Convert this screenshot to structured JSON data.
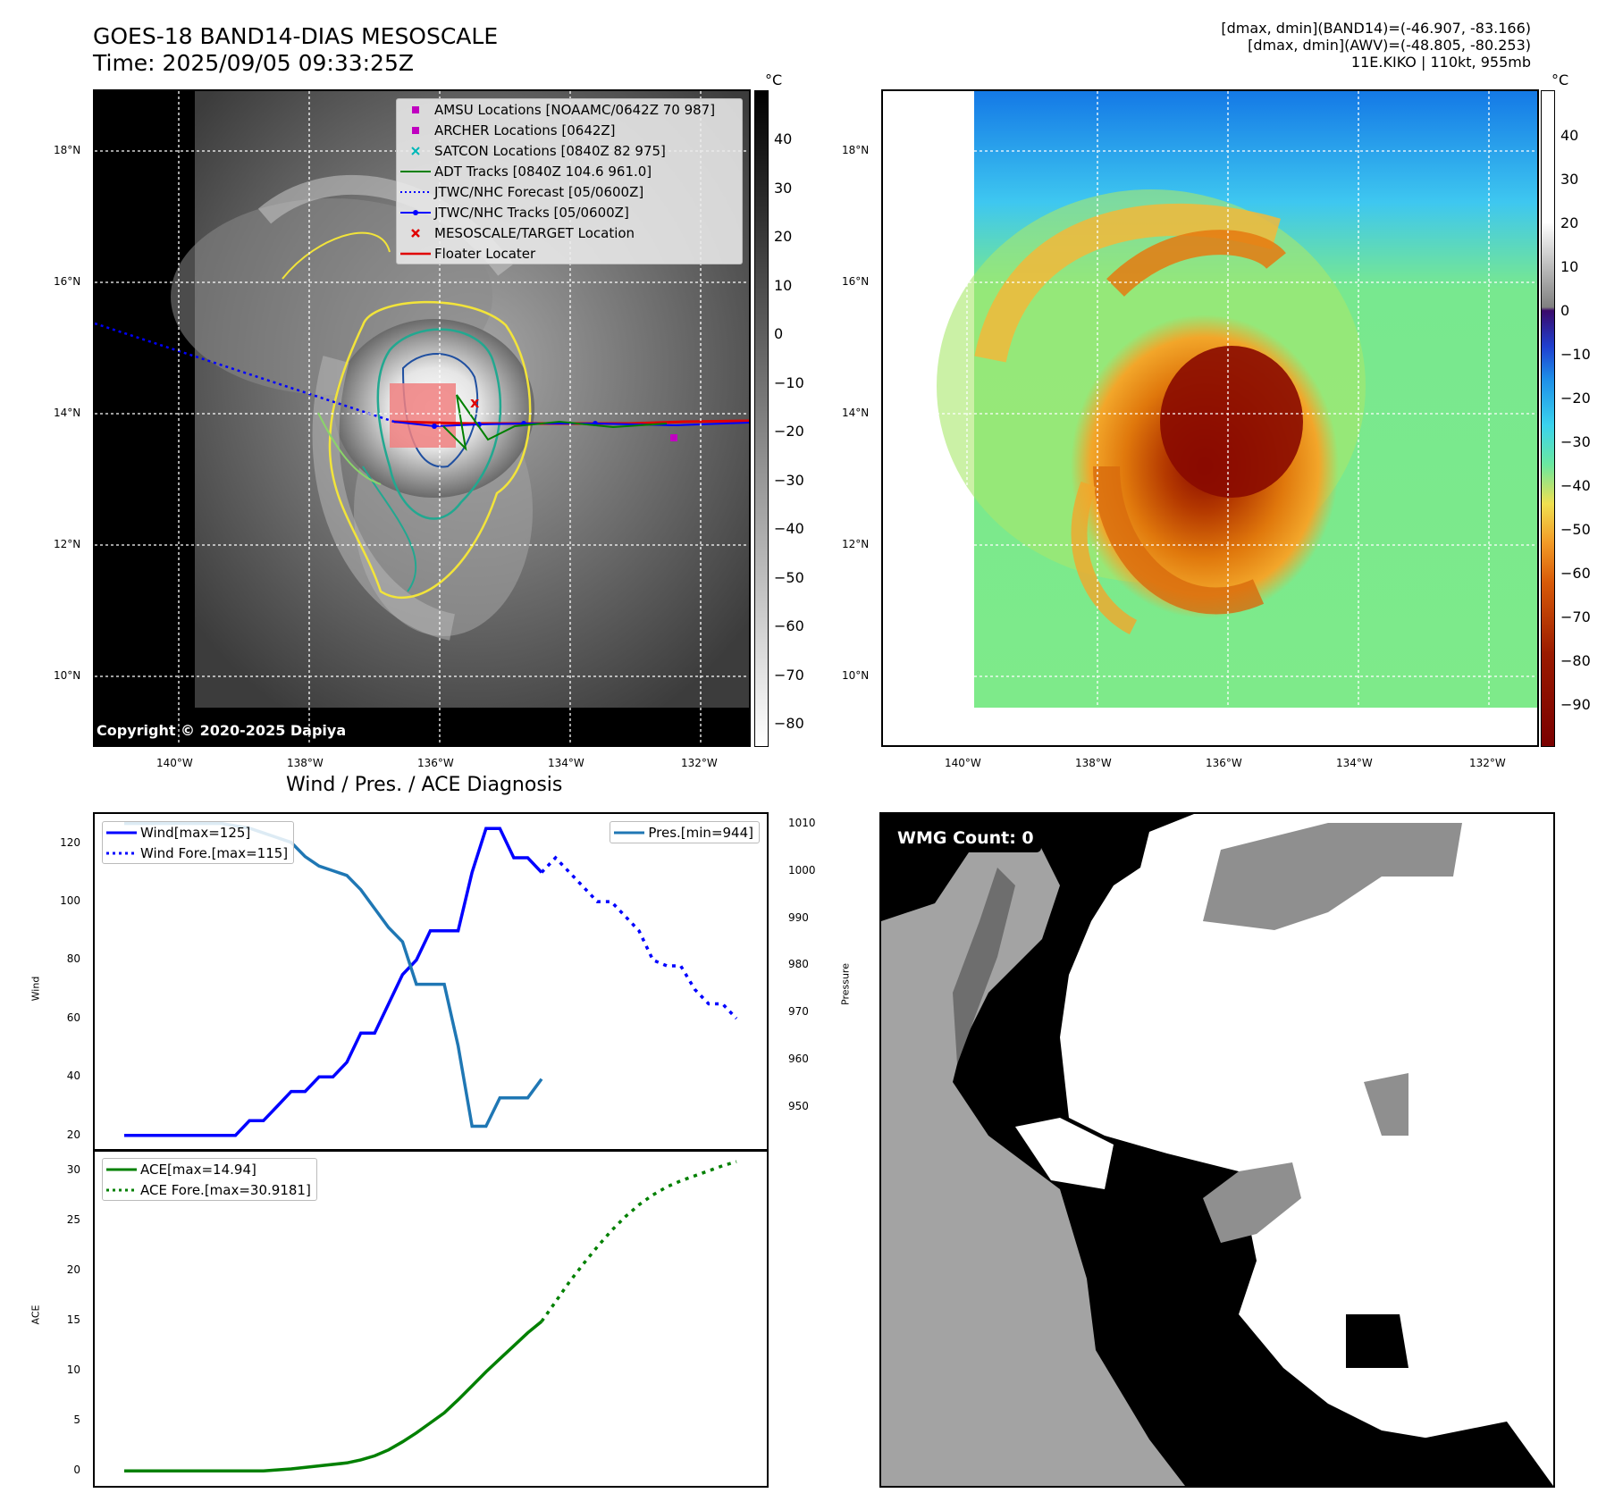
{
  "header": {
    "title_line1": "GOES-18 BAND14-DIAS MESOSCALE",
    "title_line2": "Time: 2025/09/05 09:33:25Z",
    "info_line1": "[dmax, dmin](BAND14)=(-46.907, -83.166)",
    "info_line2": "[dmax, dmin](AWV)=(-48.805, -80.253)",
    "info_line3": "11E.KIKO | 110kt, 955mb"
  },
  "map_axes": {
    "lat_labels": [
      "18°N",
      "16°N",
      "14°N",
      "12°N",
      "10°N"
    ],
    "lon_labels": [
      "140°W",
      "138°W",
      "136°W",
      "134°W",
      "132°W"
    ]
  },
  "colorbar_left": {
    "unit": "°C",
    "ticks": [
      "40",
      "30",
      "20",
      "10",
      "0",
      "−10",
      "−20",
      "−30",
      "−40",
      "−50",
      "−60",
      "−70",
      "−80"
    ]
  },
  "colorbar_right": {
    "unit": "°C",
    "ticks": [
      "40",
      "30",
      "20",
      "10",
      "0",
      "−10",
      "−20",
      "−30",
      "−40",
      "−50",
      "−60",
      "−70",
      "−80",
      "−90"
    ]
  },
  "legend_map": {
    "items": [
      {
        "label": "AMSU Locations [NOAAMC/0642Z 70 987]",
        "symbol": "square",
        "color": "#c000c0"
      },
      {
        "label": "ARCHER Locations [0642Z]",
        "symbol": "square",
        "color": "#c000c0"
      },
      {
        "label": "SATCON Locations [0840Z 82 975]",
        "symbol": "x",
        "color": "#00b8b8"
      },
      {
        "label": "ADT Tracks [0840Z 104.6 961.0]",
        "symbol": "line",
        "color": "#008000"
      },
      {
        "label": "JTWC/NHC Forecast [05/0600Z]",
        "symbol": "dotted",
        "color": "#0000ff"
      },
      {
        "label": "JTWC/NHC Tracks [05/0600Z]",
        "symbol": "line-dot",
        "color": "#0000ff"
      },
      {
        "label": "MESOSCALE/TARGET Location",
        "symbol": "x",
        "color": "#e00000"
      },
      {
        "label": "Floater Locater",
        "symbol": "line",
        "color": "#e00000"
      }
    ]
  },
  "copyright": "Copyright © 2020-2025 Dapiya",
  "diagnosis_title": "Wind / Pres. / ACE Diagnosis",
  "wmg_label": "WMG Count: 0",
  "colors": {
    "wind": "#0000ff",
    "pressure": "#1f77b4",
    "ace": "#008000"
  },
  "chart_data": [
    {
      "type": "line",
      "title": "Wind / Pres. / ACE Diagnosis",
      "ylabel": "Wind",
      "y2label": "Pressure",
      "ylim": [
        15,
        130
      ],
      "y2lim": [
        941,
        1012
      ],
      "yticks": [
        "120",
        "100",
        "80",
        "60",
        "40",
        "20"
      ],
      "y2ticks": [
        "1010",
        "1000",
        "990",
        "980",
        "970",
        "960",
        "950"
      ],
      "legend_left": [
        "Wind[max=125]",
        "Wind Fore.[max=115]"
      ],
      "legend_right": [
        "Pres.[min=944]"
      ],
      "series": [
        {
          "name": "Wind[max=125]",
          "style": "solid",
          "axis": "left",
          "x": [
            0,
            8,
            9,
            10,
            11,
            12,
            13,
            14,
            15,
            16,
            17,
            18,
            19,
            20,
            21,
            22,
            23,
            24,
            25,
            26,
            27,
            28,
            29,
            30
          ],
          "values": [
            20,
            20,
            25,
            25,
            30,
            35,
            35,
            40,
            40,
            45,
            55,
            55,
            65,
            75,
            80,
            90,
            90,
            90,
            110,
            125,
            125,
            115,
            115,
            110
          ]
        },
        {
          "name": "Wind Fore.[max=115]",
          "style": "dotted",
          "axis": "left",
          "x": [
            30,
            31,
            32,
            33,
            34,
            35,
            36,
            37,
            38,
            39,
            40,
            41,
            42,
            43,
            44
          ],
          "values": [
            110,
            115,
            110,
            105,
            100,
            100,
            95,
            90,
            80,
            78,
            78,
            70,
            65,
            65,
            60
          ]
        },
        {
          "name": "Pres.[min=944]",
          "style": "solid",
          "axis": "right",
          "x": [
            0,
            4,
            7,
            9,
            10,
            11,
            12,
            13,
            14,
            15,
            16,
            17,
            18,
            19,
            20,
            21,
            22,
            23,
            24,
            25,
            26,
            27,
            28,
            29,
            30
          ],
          "values": [
            1010,
            1010,
            1010,
            1009,
            1008,
            1007,
            1006,
            1003,
            1001,
            1000,
            999,
            996,
            992,
            988,
            985,
            976,
            976,
            976,
            963,
            946,
            946,
            952,
            952,
            952,
            956
          ]
        }
      ]
    },
    {
      "type": "line",
      "ylabel": "ACE",
      "ylim": [
        -1.5,
        32
      ],
      "yticks": [
        "30",
        "25",
        "20",
        "15",
        "10",
        "5",
        "0"
      ],
      "legend": [
        "ACE[max=14.94]",
        "ACE Fore.[max=30.9181]"
      ],
      "series": [
        {
          "name": "ACE[max=14.94]",
          "style": "solid",
          "x": [
            0,
            10,
            12,
            14,
            16,
            17,
            18,
            19,
            20,
            21,
            22,
            23,
            24,
            25,
            26,
            27,
            28,
            29,
            30
          ],
          "values": [
            0,
            0,
            0.2,
            0.5,
            0.8,
            1.1,
            1.5,
            2.1,
            2.9,
            3.8,
            4.8,
            5.8,
            7.1,
            8.5,
            9.9,
            11.2,
            12.5,
            13.8,
            14.94
          ]
        },
        {
          "name": "ACE Fore.[max=30.9181]",
          "style": "dotted",
          "x": [
            30,
            31,
            32,
            33,
            34,
            35,
            36,
            37,
            38,
            39,
            40,
            41,
            42,
            43,
            44
          ],
          "values": [
            14.94,
            16.9,
            18.9,
            20.7,
            22.4,
            24.0,
            25.4,
            26.6,
            27.6,
            28.4,
            29.0,
            29.5,
            30.0,
            30.5,
            30.9181
          ]
        }
      ]
    }
  ]
}
